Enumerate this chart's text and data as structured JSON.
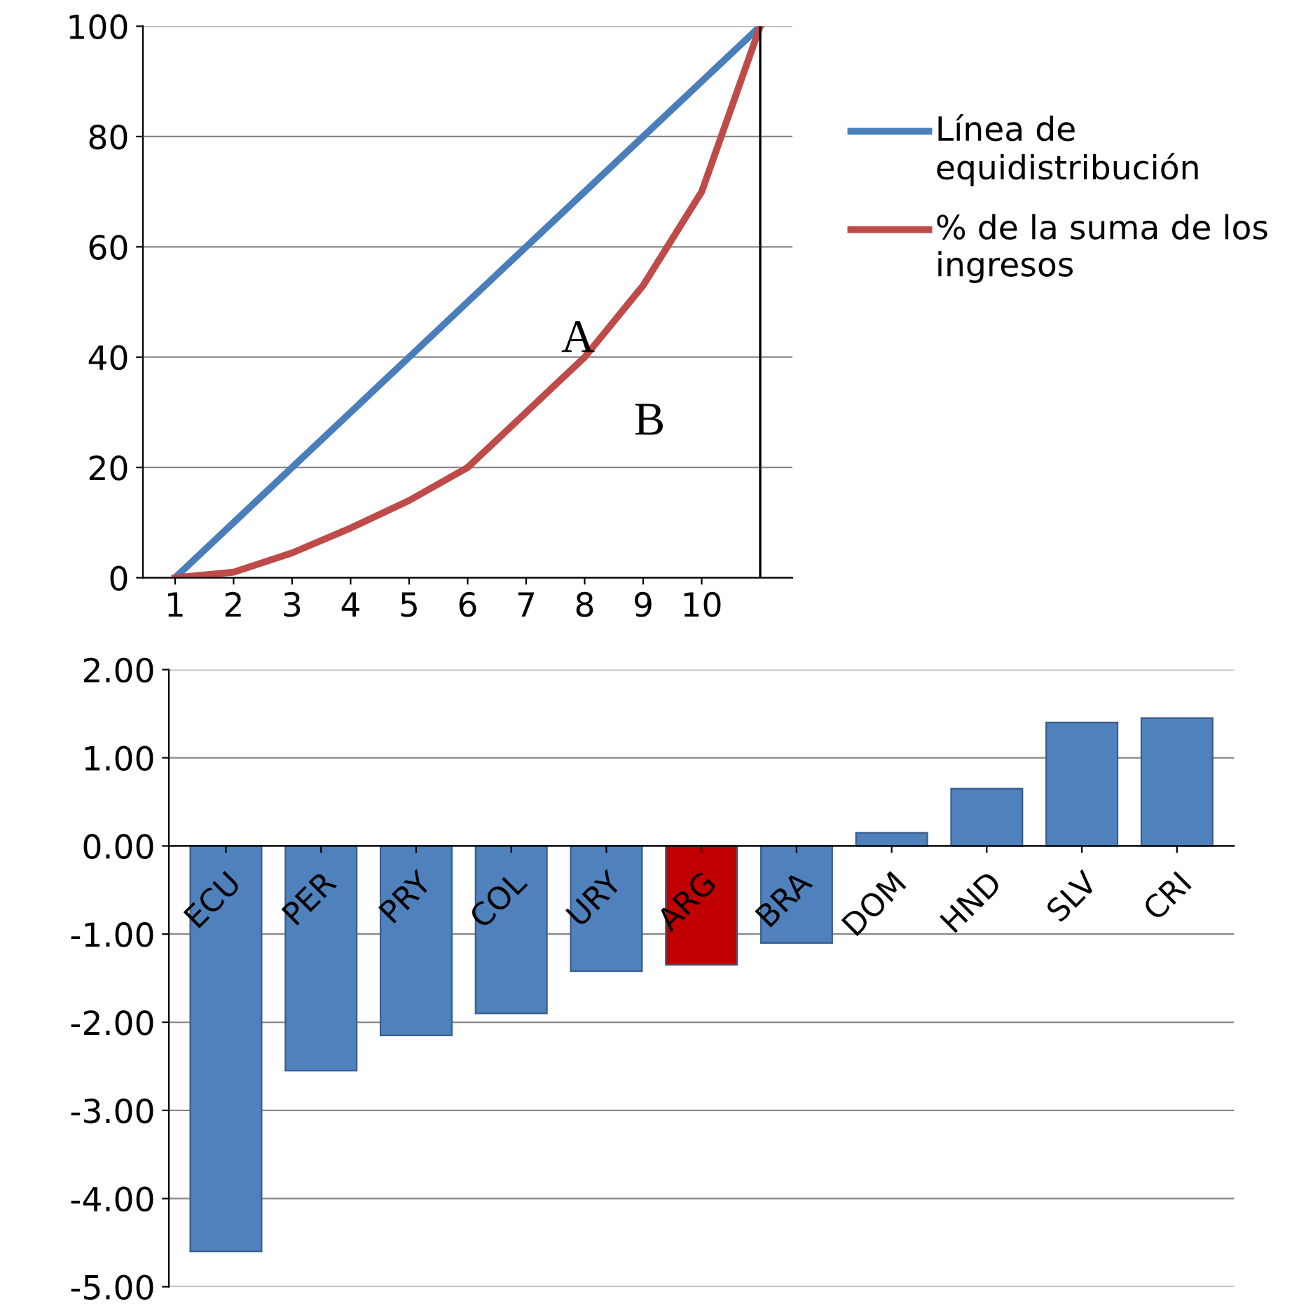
{
  "chart_data": [
    {
      "type": "line",
      "x": [
        1,
        2,
        3,
        4,
        5,
        6,
        7,
        8,
        9,
        10,
        11
      ],
      "series": [
        {
          "name": "Línea de equidistribución",
          "color": "#4a7ebb",
          "values": [
            0,
            10,
            20,
            30,
            40,
            50,
            60,
            70,
            80,
            90,
            100
          ]
        },
        {
          "name": "% de la suma de los ingresos",
          "color": "#be4b48",
          "values": [
            0,
            1,
            4.5,
            9,
            14,
            20,
            30,
            40,
            53,
            70,
            100
          ]
        }
      ],
      "xlim": [
        0.45,
        11.55
      ],
      "xticks": [
        1,
        2,
        3,
        4,
        5,
        6,
        7,
        8,
        9,
        10
      ],
      "ylim": [
        0,
        100
      ],
      "yticks": [
        0,
        20,
        40,
        60,
        80,
        100
      ],
      "grid": "y",
      "legend": "right",
      "ref_lines": [
        {
          "axis": "x",
          "value": 11,
          "color": "#000000"
        }
      ],
      "annotations": [
        "A",
        "B"
      ]
    },
    {
      "type": "bar",
      "categories": [
        "ECU",
        "PER",
        "PRY",
        "COL",
        "URY",
        "ARG",
        "BRA",
        "DOM",
        "HND",
        "SLV",
        "CRI"
      ],
      "values": [
        -4.6,
        -2.55,
        -2.15,
        -1.9,
        -1.42,
        -1.35,
        -1.1,
        0.15,
        0.65,
        1.4,
        1.45
      ],
      "colors": [
        "#4f81bd",
        "#4f81bd",
        "#4f81bd",
        "#4f81bd",
        "#4f81bd",
        "#c00000",
        "#4f81bd",
        "#4f81bd",
        "#4f81bd",
        "#4f81bd",
        "#4f81bd"
      ],
      "ylim": [
        -5,
        2
      ],
      "yticks": [
        {
          "value": -5,
          "label": "-5.00"
        },
        {
          "value": -4,
          "label": "-4.00"
        },
        {
          "value": -3,
          "label": "-3.00"
        },
        {
          "value": -2,
          "label": "-2.00"
        },
        {
          "value": -1,
          "label": "-1.00"
        },
        {
          "value": 0,
          "label": "0.00"
        },
        {
          "value": 1,
          "label": "1.00"
        },
        {
          "value": 2,
          "label": "2.00"
        }
      ],
      "grid": "y"
    }
  ]
}
